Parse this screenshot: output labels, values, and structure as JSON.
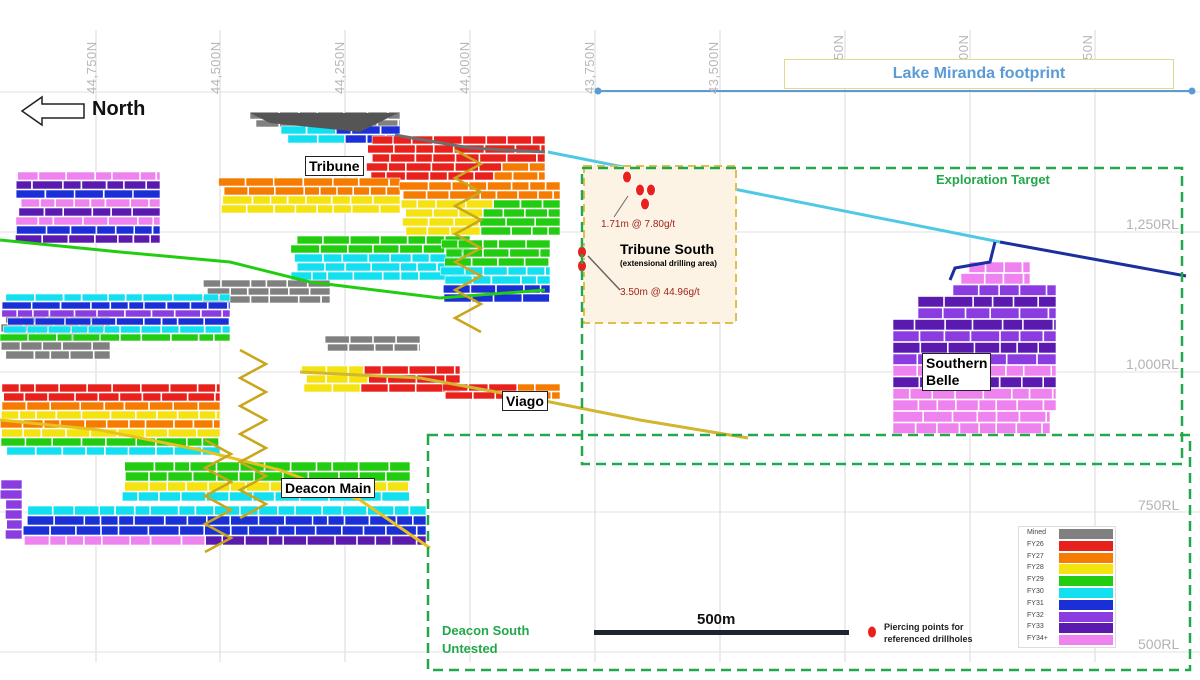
{
  "northings": [
    "44,750N",
    "44,500N",
    "44,250N",
    "44,000N",
    "43,750N",
    "43,500N",
    "50N",
    "00N",
    "50N"
  ],
  "rls": [
    "1,250RL",
    "1,000RL",
    "750RL",
    "500RL"
  ],
  "direction": {
    "label": "North"
  },
  "footprint": {
    "label": "Lake Miranda footprint",
    "color": "#5b9bd5"
  },
  "targets": {
    "exploration": "Exploration Target",
    "deacon_south_line1": "Deacon South",
    "deacon_south_line2": "Untested",
    "color": "#22a84a"
  },
  "deposits": {
    "tribune": "Tribune",
    "viago": "Viago",
    "deacon_main": "Deacon Main",
    "southern_belle_line1": "Southern",
    "southern_belle_line2": "Belle"
  },
  "tribune_south": {
    "title": "Tribune South",
    "subtitle": "(extensional drilling area)",
    "intercept_1": "1.71m @ 7.80g/t",
    "intercept_2": "3.50m @ 44.96g/t"
  },
  "scale_bar": {
    "label": "500m"
  },
  "piercing_legend": {
    "line1": "Piercing points for",
    "line2": "referenced drillholes"
  },
  "legend": [
    {
      "label": "Mined",
      "color": "#808080"
    },
    {
      "label": "FY26",
      "color": "#e8211c"
    },
    {
      "label": "FY27",
      "color": "#f57c00"
    },
    {
      "label": "FY28",
      "color": "#f5e211"
    },
    {
      "label": "FY29",
      "color": "#22cc11"
    },
    {
      "label": "FY30",
      "color": "#12e0f0"
    },
    {
      "label": "FY31",
      "color": "#1a2fd6"
    },
    {
      "label": "FY32",
      "color": "#8a3ce0"
    },
    {
      "label": "FY33",
      "color": "#5a1ab0"
    },
    {
      "label": "FY34+",
      "color": "#ee82ee"
    }
  ]
}
